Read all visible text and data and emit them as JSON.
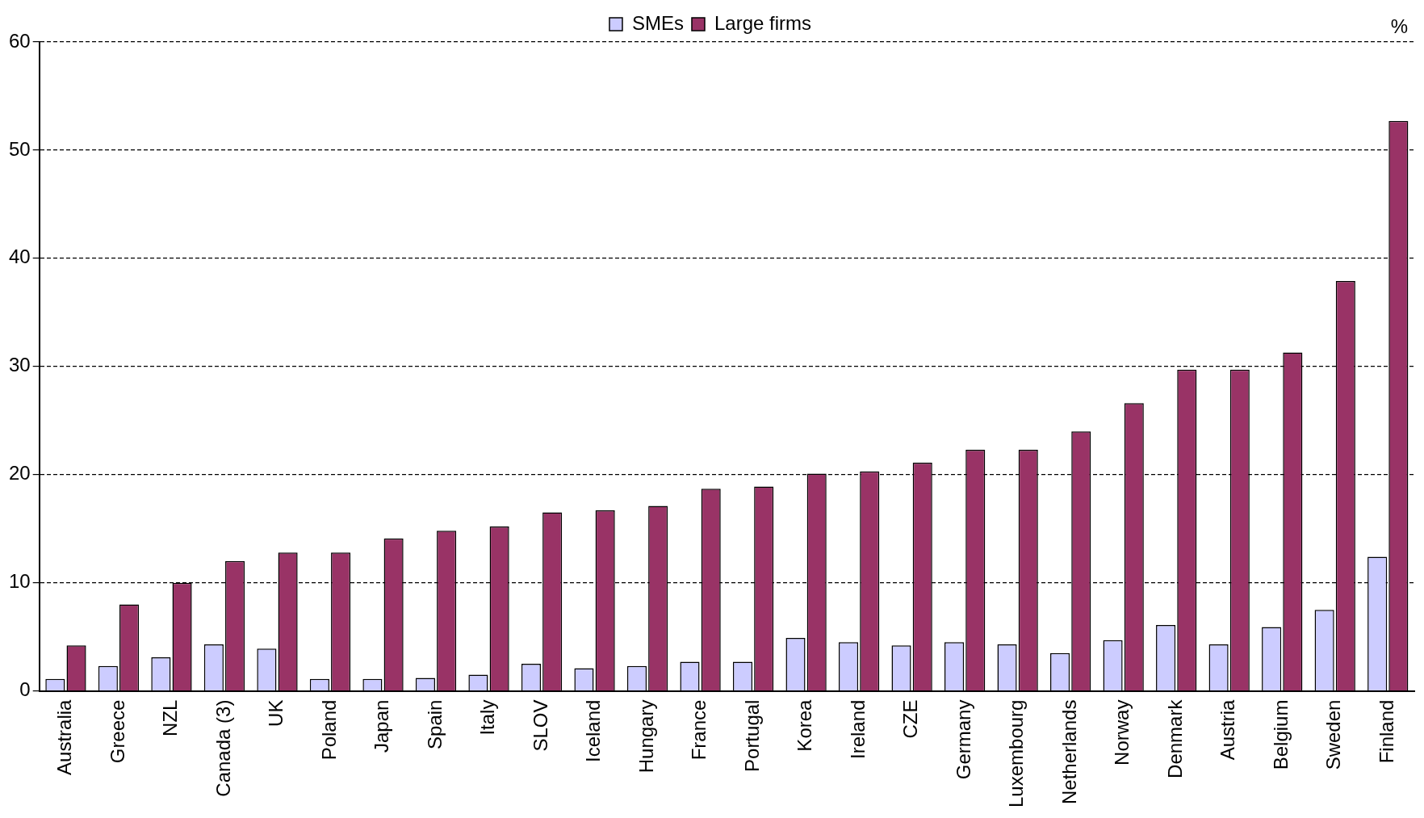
{
  "chart_data": {
    "type": "bar",
    "ylabel": "%",
    "categories": [
      "Australia",
      "Greece",
      "NZL",
      "Canada (3)",
      "UK",
      "Poland",
      "Japan",
      "Spain",
      "Italy",
      "SLOV",
      "Iceland",
      "Hungary",
      "France",
      "Portugal",
      "Korea",
      "Ireland",
      "CZE",
      "Germany",
      "Luxembourg",
      "Netherlands",
      "Norway",
      "Denmark",
      "Austria",
      "Belgium",
      "Sweden",
      "Finland"
    ],
    "series": [
      {
        "name": "SMEs",
        "color": "#ccccff",
        "values": [
          1.1,
          2.3,
          3.1,
          4.3,
          3.9,
          1.1,
          1.1,
          1.2,
          1.5,
          2.5,
          2.1,
          2.3,
          2.7,
          2.7,
          4.9,
          4.5,
          4.2,
          4.5,
          4.3,
          3.5,
          4.7,
          6.1,
          4.3,
          5.9,
          7.5,
          12.4
        ]
      },
      {
        "name": "Large firms",
        "color": "#993366",
        "values": [
          4.2,
          8.0,
          10.0,
          12.0,
          12.8,
          12.8,
          14.1,
          14.8,
          15.2,
          16.5,
          16.7,
          17.1,
          18.7,
          18.9,
          20.1,
          20.3,
          21.1,
          22.3,
          22.3,
          24.0,
          26.6,
          29.7,
          29.7,
          31.3,
          37.9,
          52.7
        ]
      }
    ],
    "ylim": [
      0,
      60
    ],
    "yticks": [
      0,
      10,
      20,
      30,
      40,
      50,
      60
    ],
    "grid": "y",
    "legend": "top"
  }
}
